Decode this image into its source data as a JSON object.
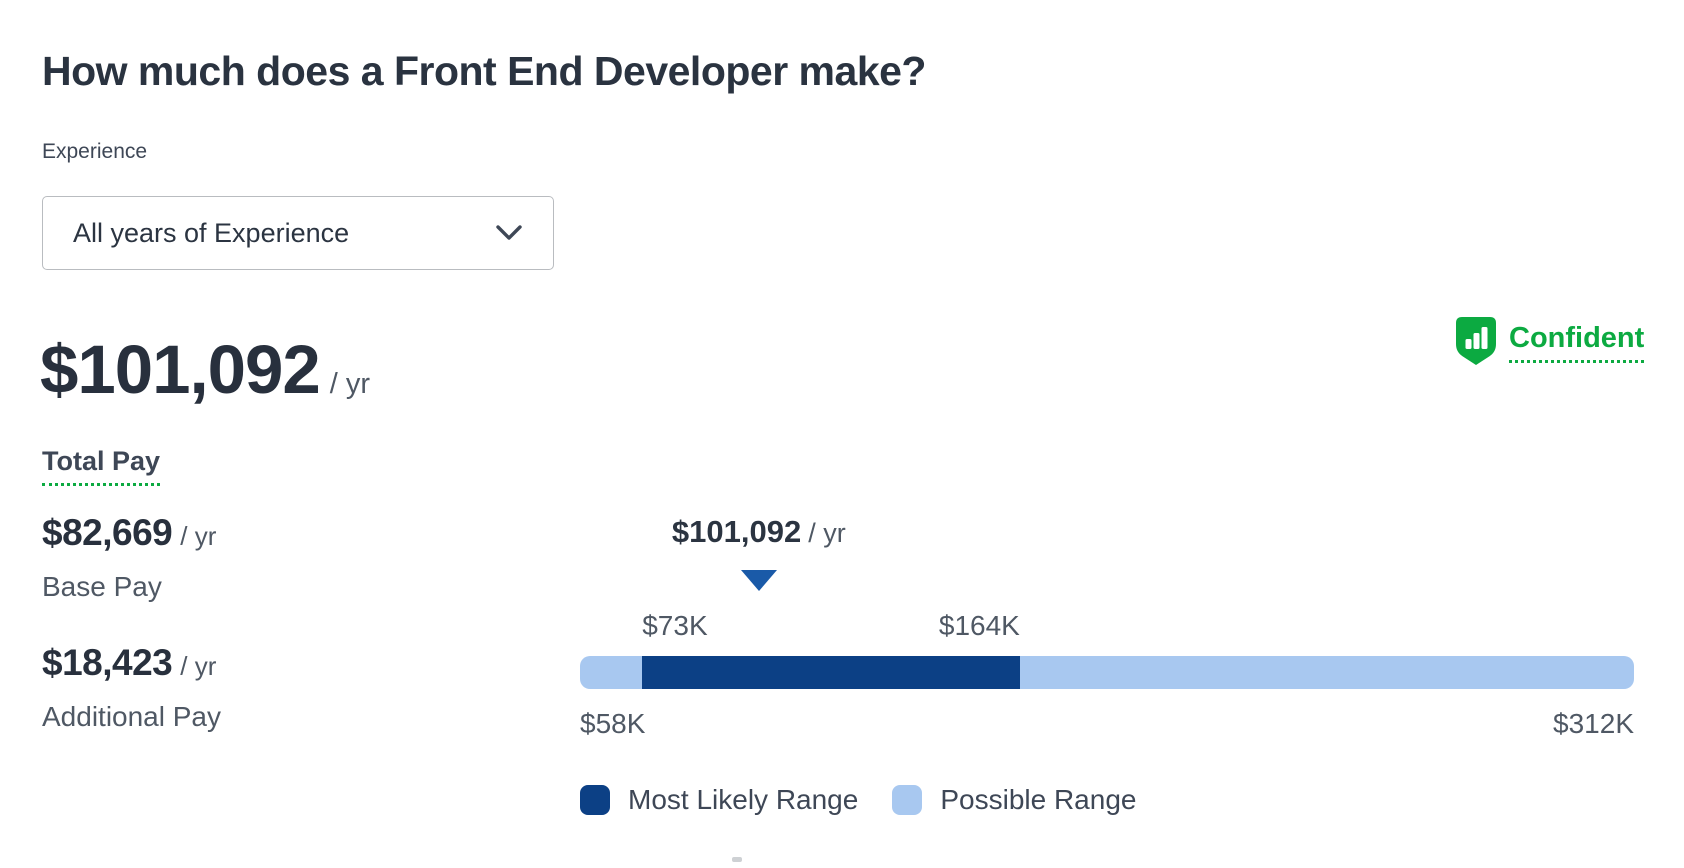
{
  "page": {
    "title": "How much does a Front End Developer make?"
  },
  "filter": {
    "label": "Experience",
    "selected_option": "All years of Experience"
  },
  "hero": {
    "amount": "$101,092",
    "period": "/ yr",
    "label": "Total Pay"
  },
  "confidence": {
    "label": "Confident",
    "icon": "shield-bar-chart",
    "color": "#0caa41"
  },
  "breakdown": [
    {
      "amount": "$82,669",
      "period": "/ yr",
      "label": "Base Pay"
    },
    {
      "amount": "$18,423",
      "period": "/ yr",
      "label": "Additional Pay"
    }
  ],
  "chart_data": {
    "type": "range-bar",
    "unit": "USD per year",
    "pointer": {
      "value": 101092,
      "label": "$101,092",
      "period": "/ yr"
    },
    "range": {
      "min": 58000,
      "max": 312000,
      "min_label": "$58K",
      "max_label": "$312K"
    },
    "likely": {
      "min": 73000,
      "max": 164000,
      "min_label": "$73K",
      "max_label": "$164K"
    },
    "legend": [
      {
        "label": "Most Likely Range",
        "color": "#0c4085"
      },
      {
        "label": "Possible Range",
        "color": "#a8c8f0"
      }
    ],
    "colors": {
      "most_likely": "#0c4085",
      "possible": "#a8c8f0",
      "pointer_marker": "#1a5aa8"
    },
    "legend_position": "bottom",
    "grid": false
  }
}
